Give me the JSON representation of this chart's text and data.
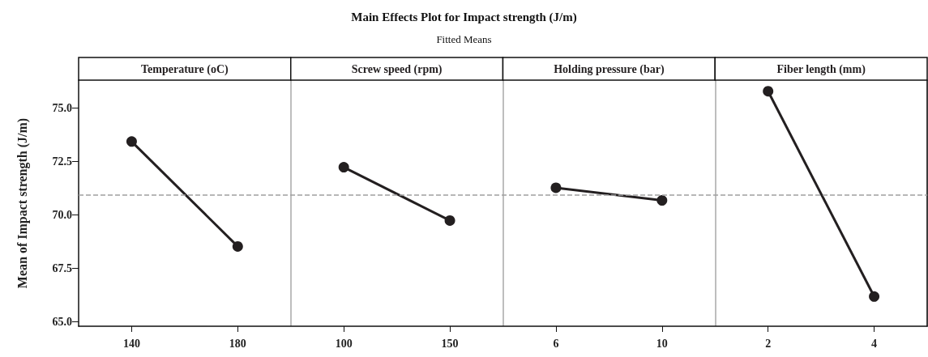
{
  "chart_data": {
    "type": "line",
    "title": "Main Effects Plot for Impact strength (J/m)",
    "subtitle": "Fitted Means",
    "ylabel": "Mean of Impact strength (J/m)",
    "categories": [
      "140",
      "180",
      "100",
      "150",
      "6",
      "10",
      "2",
      "4"
    ],
    "marker": "circle",
    "line_style": "solid",
    "grid": false,
    "ylim": [
      64.8,
      76.3
    ],
    "yticks": [
      {
        "value": 65,
        "label": "65.0"
      },
      {
        "value": 67.5,
        "label": "67.5"
      },
      {
        "value": 70,
        "label": "70.0"
      },
      {
        "value": 72.5,
        "label": "72.5"
      },
      {
        "value": 75,
        "label": "75.0"
      }
    ],
    "annotations": [
      "Temperature (oC)",
      "Screw speed (rpm)",
      "Holding pressure (bar)",
      "Fiber length (mm)"
    ],
    "series": [
      {
        "color": "#231f20",
        "values": [
          73.43,
          68.53,
          null,
          null,
          null,
          null,
          null,
          null
        ]
      },
      {
        "color": "#231f20",
        "values": [
          null,
          null,
          72.23,
          69.74,
          null,
          null,
          null,
          null
        ]
      },
      {
        "color": "#231f20",
        "values": [
          null,
          null,
          null,
          null,
          71.27,
          70.68,
          null,
          null
        ]
      },
      {
        "color": "#231f20",
        "values": [
          null,
          null,
          null,
          null,
          null,
          null,
          75.78,
          66.19
        ]
      }
    ],
    "ref_lines": [
      {
        "axis": "y",
        "value": 70.95,
        "color": "#a0a0a0",
        "line_style": "dashed"
      }
    ]
  }
}
